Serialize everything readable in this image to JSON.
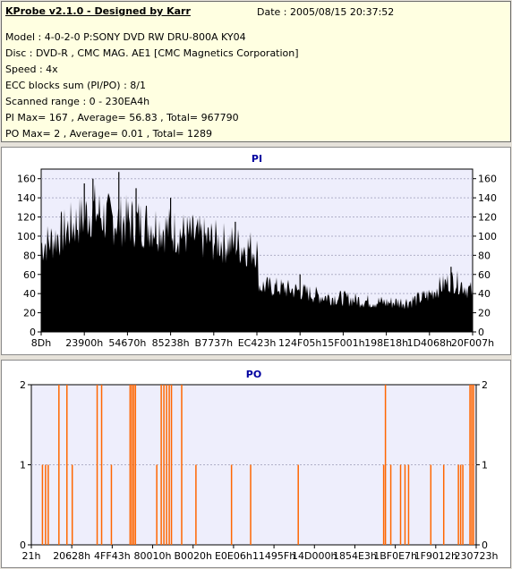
{
  "header": {
    "title": "KProbe v2.1.0 - Designed by Karr",
    "date": "Date : 2005/08/15 20:37:52",
    "lines": [
      "Model : 4-0-2-0 P:SONY    DVD RW DRU-800A  KY04",
      "Disc : DVD-R , CMC MAG. AE1 [CMC Magnetics Corporation]",
      "Speed : 4x",
      "ECC blocks sum (PI/PO) : 8/1",
      "Scanned range : 0 - 230EA4h",
      "PI Max= 167 , Average= 56.83 , Total= 967790",
      "PO Max= 2 , Average= 0.01 , Total= 1289"
    ]
  },
  "chart_data": [
    {
      "type": "area",
      "title": "PI",
      "color": "#000000",
      "ylim": [
        0,
        170
      ],
      "yticks": [
        0,
        20,
        40,
        60,
        80,
        100,
        120,
        140,
        160
      ],
      "xtick_labels": [
        "8Dh",
        "23900h",
        "54670h",
        "85238h",
        "B7737h",
        "EC423h",
        "124F05h",
        "15F001h",
        "198E18h",
        "1D4068h",
        "20F007h"
      ],
      "grid": true,
      "approx_profile": {
        "x": [
          0,
          0.02,
          0.05,
          0.1,
          0.12,
          0.15,
          0.2,
          0.25,
          0.3,
          0.35,
          0.4,
          0.45,
          0.5,
          0.505,
          0.55,
          0.6,
          0.65,
          0.7,
          0.75,
          0.8,
          0.85,
          0.88,
          0.9,
          0.92,
          0.95,
          0.97,
          1.0
        ],
        "y": [
          98,
          102,
          112,
          130,
          138,
          128,
          125,
          122,
          115,
          108,
          103,
          98,
          93,
          52,
          50,
          46,
          40,
          38,
          35,
          33,
          34,
          38,
          42,
          50,
          58,
          55,
          45
        ],
        "peaks": [
          [
            0.1,
            155
          ],
          [
            0.12,
            160
          ],
          [
            0.18,
            167
          ],
          [
            0.22,
            150
          ],
          [
            0.3,
            140
          ],
          [
            0.45,
            115
          ],
          [
            0.6,
            60
          ],
          [
            0.95,
            68
          ]
        ]
      }
    },
    {
      "type": "bar",
      "title": "PO",
      "color": "#ff6600",
      "ylim": [
        0,
        2
      ],
      "yticks": [
        0,
        1,
        2
      ],
      "xtick_labels": [
        "21h",
        "20628h",
        "4FF43h",
        "80010h",
        "B0020h",
        "E0E06h",
        "11495Fh",
        "14D000h",
        "1854E3h",
        "1BF0E7h",
        "1F9012h",
        "230723h"
      ],
      "grid": true,
      "events": [
        [
          0.025,
          1
        ],
        [
          0.032,
          1
        ],
        [
          0.038,
          1
        ],
        [
          0.062,
          2
        ],
        [
          0.08,
          2
        ],
        [
          0.092,
          1
        ],
        [
          0.148,
          2
        ],
        [
          0.158,
          2
        ],
        [
          0.18,
          1
        ],
        [
          0.222,
          2
        ],
        [
          0.226,
          2
        ],
        [
          0.23,
          2
        ],
        [
          0.234,
          2
        ],
        [
          0.282,
          1
        ],
        [
          0.292,
          2
        ],
        [
          0.298,
          2
        ],
        [
          0.304,
          2
        ],
        [
          0.31,
          2
        ],
        [
          0.315,
          2
        ],
        [
          0.338,
          2
        ],
        [
          0.37,
          1
        ],
        [
          0.45,
          1
        ],
        [
          0.493,
          1
        ],
        [
          0.6,
          1
        ],
        [
          0.792,
          1
        ],
        [
          0.796,
          2
        ],
        [
          0.808,
          1
        ],
        [
          0.83,
          1
        ],
        [
          0.84,
          1
        ],
        [
          0.848,
          1
        ],
        [
          0.898,
          1
        ],
        [
          0.927,
          1
        ],
        [
          0.96,
          1
        ],
        [
          0.965,
          1
        ],
        [
          0.97,
          1
        ],
        [
          0.986,
          2
        ],
        [
          0.99,
          2
        ],
        [
          0.994,
          2
        ]
      ]
    }
  ]
}
